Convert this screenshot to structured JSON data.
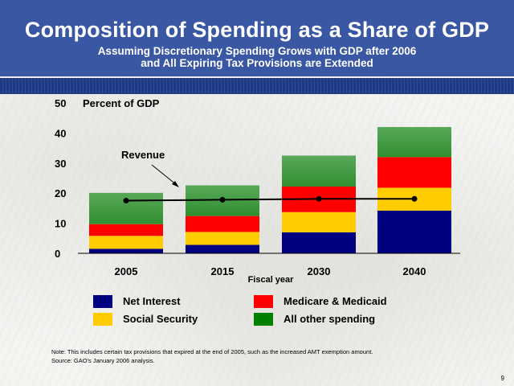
{
  "title": "Composition of Spending as a Share of GDP",
  "subtitle": {
    "line1": "Assuming Discretionary Spending Grows with GDP after 2006",
    "line2": "and All Expiring Tax Provisions are Extended"
  },
  "colors": {
    "header": "#3a57a3",
    "net_interest": "#000080",
    "social_security": "#ffcc00",
    "medicare_medicaid": "#ff0000",
    "all_other": "#2f8f2f",
    "revenue_line": "#000000"
  },
  "chart_data": {
    "type": "bar",
    "stacked": true,
    "categories": [
      "2005",
      "2015",
      "2030",
      "2040"
    ],
    "series": [
      {
        "name": "Net Interest",
        "values": [
          1.5,
          2.8,
          7.0,
          14.2
        ]
      },
      {
        "name": "Social Security",
        "values": [
          4.3,
          4.3,
          6.7,
          7.6
        ]
      },
      {
        "name": "Medicare & Medicaid",
        "values": [
          3.9,
          5.3,
          8.5,
          10.2
        ]
      },
      {
        "name": "All other spending",
        "values": [
          10.4,
          10.2,
          10.3,
          10.0
        ]
      }
    ],
    "revenue": {
      "label": "Revenue",
      "values": [
        17.5,
        17.8,
        18.1,
        18.1
      ]
    },
    "ylabel": "Percent of GDP",
    "xlabel": "Fiscal year",
    "ylim": [
      0,
      50
    ],
    "yticks": [
      0,
      10,
      20,
      30,
      40,
      50
    ],
    "grid": false,
    "legend": "bottom"
  },
  "legend": {
    "net_interest": "Net Interest",
    "social_security": "Social Security",
    "medicare_medicaid": "Medicare & Medicaid",
    "all_other": "All other spending"
  },
  "note": {
    "line1": "Note: This includes certain tax provisions that expired at the end of 2005, such as the increased AMT exemption amount.",
    "line2": "Source: GAO's January 2006 analysis."
  },
  "page_number": "9"
}
